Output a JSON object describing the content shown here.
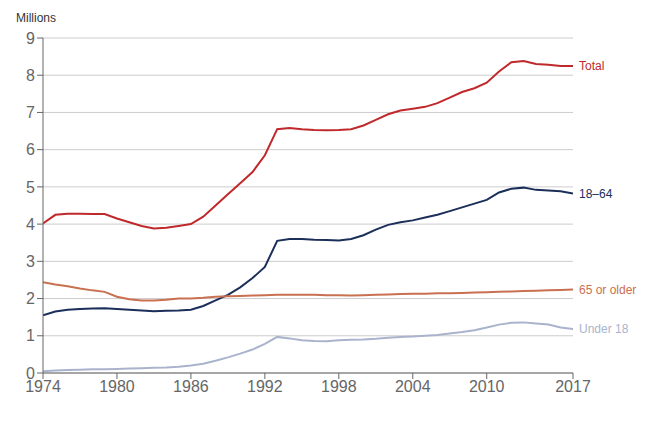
{
  "chart_data": {
    "type": "line",
    "ylabel": "Millions",
    "x": [
      1974,
      1975,
      1976,
      1977,
      1978,
      1979,
      1980,
      1981,
      1982,
      1983,
      1984,
      1985,
      1986,
      1987,
      1988,
      1989,
      1990,
      1991,
      1992,
      1993,
      1994,
      1995,
      1996,
      1997,
      1998,
      1999,
      2000,
      2001,
      2002,
      2003,
      2004,
      2005,
      2006,
      2007,
      2008,
      2009,
      2010,
      2011,
      2012,
      2013,
      2014,
      2015,
      2016,
      2017
    ],
    "series": [
      {
        "name": "Total",
        "color": "#c0292b",
        "values": [
          4.02,
          4.25,
          4.28,
          4.28,
          4.27,
          4.27,
          4.15,
          4.05,
          3.95,
          3.88,
          3.9,
          3.95,
          4.0,
          4.2,
          4.5,
          4.8,
          5.1,
          5.4,
          5.85,
          6.55,
          6.58,
          6.55,
          6.53,
          6.52,
          6.53,
          6.55,
          6.65,
          6.8,
          6.95,
          7.05,
          7.1,
          7.15,
          7.25,
          7.4,
          7.55,
          7.65,
          7.8,
          8.1,
          8.35,
          8.38,
          8.3,
          8.28,
          8.25,
          8.25
        ]
      },
      {
        "name": "18–64",
        "color": "#1b2f5a",
        "values": [
          1.55,
          1.65,
          1.7,
          1.72,
          1.73,
          1.74,
          1.72,
          1.7,
          1.68,
          1.66,
          1.67,
          1.68,
          1.7,
          1.8,
          1.95,
          2.1,
          2.3,
          2.55,
          2.85,
          3.55,
          3.6,
          3.6,
          3.58,
          3.57,
          3.56,
          3.6,
          3.7,
          3.85,
          3.98,
          4.05,
          4.1,
          4.18,
          4.25,
          4.35,
          4.45,
          4.55,
          4.65,
          4.85,
          4.95,
          4.98,
          4.92,
          4.9,
          4.88,
          4.82
        ]
      },
      {
        "name": "65 or older",
        "color": "#c97050",
        "values": [
          2.44,
          2.38,
          2.33,
          2.27,
          2.22,
          2.18,
          2.05,
          1.98,
          1.95,
          1.95,
          1.97,
          2.0,
          2.0,
          2.02,
          2.05,
          2.06,
          2.07,
          2.08,
          2.09,
          2.1,
          2.1,
          2.1,
          2.1,
          2.09,
          2.09,
          2.08,
          2.09,
          2.1,
          2.11,
          2.12,
          2.13,
          2.13,
          2.14,
          2.14,
          2.15,
          2.16,
          2.17,
          2.18,
          2.19,
          2.2,
          2.21,
          2.22,
          2.23,
          2.24
        ]
      },
      {
        "name": "Under 18",
        "color": "#a9b4cc",
        "values": [
          0.05,
          0.07,
          0.08,
          0.09,
          0.1,
          0.1,
          0.11,
          0.12,
          0.13,
          0.14,
          0.15,
          0.17,
          0.2,
          0.25,
          0.33,
          0.42,
          0.52,
          0.63,
          0.78,
          0.97,
          0.93,
          0.88,
          0.86,
          0.85,
          0.88,
          0.89,
          0.9,
          0.92,
          0.95,
          0.97,
          0.98,
          1.0,
          1.02,
          1.06,
          1.1,
          1.15,
          1.22,
          1.3,
          1.35,
          1.36,
          1.33,
          1.3,
          1.22,
          1.18
        ]
      }
    ],
    "xlim": [
      1974,
      2017
    ],
    "xticks": [
      1974,
      1980,
      1986,
      1992,
      1998,
      2004,
      2010,
      2017
    ],
    "ylim": [
      0,
      9
    ],
    "yticks": [
      0,
      1,
      2,
      3,
      4,
      5,
      6,
      7,
      8,
      9
    ],
    "grid": true
  }
}
